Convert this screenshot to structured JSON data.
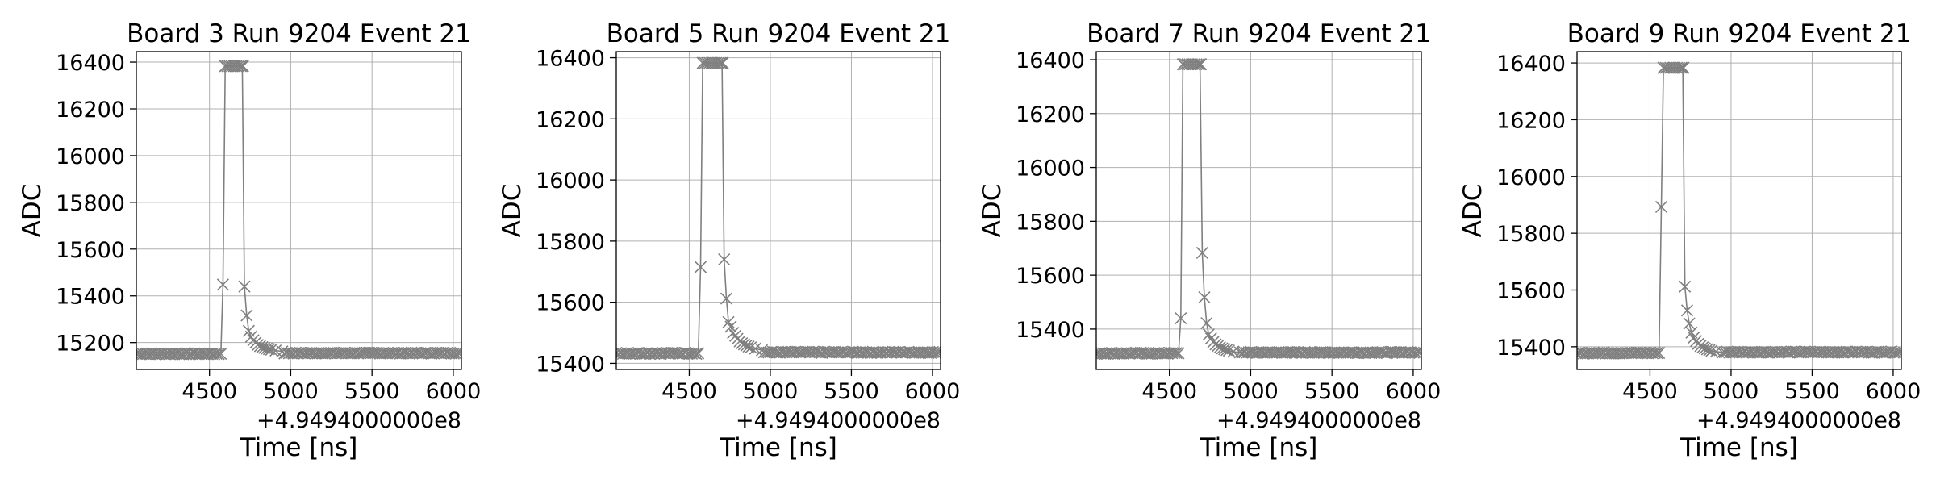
{
  "chart_data": [
    {
      "type": "scatter",
      "title": "Board 3 Run 9204 Event 21",
      "xlabel": "Time [ns]",
      "ylabel": "ADC",
      "x_offset_label": "+4.9494000000e8",
      "xlim": [
        4050,
        6050
      ],
      "ylim": [
        15085,
        16445
      ],
      "xticks": [
        4500,
        5000,
        5500,
        6000
      ],
      "xtick_labels": [
        "4500",
        "5000",
        "5500",
        "6000"
      ],
      "yticks": [
        15200,
        15400,
        15600,
        15800,
        16000,
        16200,
        16400
      ],
      "ytick_labels": [
        "15200",
        "15400",
        "15600",
        "15800",
        "16000",
        "16200",
        "16400"
      ],
      "grid": true,
      "color": "#808080",
      "marker": "x",
      "baseline": 15152,
      "saturation": 16383,
      "pulse_start": 4583,
      "pulse_end": 4715,
      "series": [
        {
          "x": [
            4570,
            4583,
            4597,
            4702,
            4715,
            4729,
            4742,
            4756,
            4770,
            4784,
            4797,
            4811,
            4825,
            4838,
            4852,
            4866,
            4880,
            4907,
            4948
          ],
          "y": [
            15152,
            15448,
            16383,
            16383,
            15440,
            15316,
            15250,
            15225,
            15210,
            15200,
            15190,
            15185,
            15180,
            15177,
            15174,
            15172,
            15170,
            15166,
            15162
          ]
        }
      ]
    },
    {
      "type": "scatter",
      "title": "Board 5 Run 9204 Event 21",
      "xlabel": "Time [ns]",
      "ylabel": "ADC",
      "x_offset_label": "+4.9494000000e8",
      "xlim": [
        4050,
        6050
      ],
      "ylim": [
        15380,
        16420
      ],
      "xticks": [
        4500,
        5000,
        5500,
        6000
      ],
      "xtick_labels": [
        "4500",
        "5000",
        "5500",
        "6000"
      ],
      "yticks": [
        15400,
        15600,
        15800,
        16000,
        16200,
        16400
      ],
      "ytick_labels": [
        "15400",
        "15600",
        "15800",
        "16000",
        "16200",
        "16400"
      ],
      "grid": true,
      "color": "#808080",
      "marker": "x",
      "baseline": 15433,
      "saturation": 16383,
      "pulse_start": 4570,
      "pulse_end": 4715,
      "series": [
        {
          "x": [
            4556,
            4570,
            4583,
            4702,
            4715,
            4729,
            4742,
            4756,
            4770,
            4784,
            4797,
            4811,
            4825,
            4838,
            4852,
            4866,
            4880,
            4907,
            4948
          ],
          "y": [
            15433,
            15715,
            16383,
            16383,
            15740,
            15612,
            15535,
            15520,
            15500,
            15490,
            15480,
            15472,
            15466,
            15462,
            15458,
            15455,
            15452,
            15448,
            15443
          ]
        }
      ]
    },
    {
      "type": "scatter",
      "title": "Board 7 Run 9204 Event 21",
      "xlabel": "Time [ns]",
      "ylabel": "ADC",
      "x_offset_label": "+4.9494000000e8",
      "xlim": [
        4050,
        6050
      ],
      "ylim": [
        15250,
        16430
      ],
      "xticks": [
        4500,
        5000,
        5500,
        6000
      ],
      "xtick_labels": [
        "4500",
        "5000",
        "5500",
        "6000"
      ],
      "yticks": [
        15400,
        15600,
        15800,
        16000,
        16200,
        16400
      ],
      "ytick_labels": [
        "15400",
        "15600",
        "15800",
        "16000",
        "16200",
        "16400"
      ],
      "grid": true,
      "color": "#808080",
      "marker": "x",
      "baseline": 15310,
      "saturation": 16383,
      "pulse_start": 4570,
      "pulse_end": 4702,
      "series": [
        {
          "x": [
            4556,
            4570,
            4583,
            4688,
            4702,
            4715,
            4729,
            4742,
            4756,
            4770,
            4784,
            4797,
            4811,
            4825,
            4838,
            4852,
            4866,
            4893,
            4934
          ],
          "y": [
            15310,
            15440,
            16383,
            16383,
            15683,
            15518,
            15422,
            15380,
            15365,
            15352,
            15343,
            15337,
            15332,
            15328,
            15325,
            15322,
            15320,
            15316,
            15313
          ]
        }
      ]
    },
    {
      "type": "scatter",
      "title": "Board 9 Run 9204 Event 21",
      "xlabel": "Time [ns]",
      "ylabel": "ADC",
      "x_offset_label": "+4.9494000000e8",
      "xlim": [
        4050,
        6050
      ],
      "ylim": [
        15320,
        16440
      ],
      "xticks": [
        4500,
        5000,
        5500,
        6000
      ],
      "xtick_labels": [
        "4500",
        "5000",
        "5500",
        "6000"
      ],
      "yticks": [
        15400,
        15600,
        15800,
        16000,
        16200,
        16400
      ],
      "ytick_labels": [
        "15400",
        "15600",
        "15800",
        "16000",
        "16200",
        "16400"
      ],
      "grid": true,
      "color": "#808080",
      "marker": "x",
      "baseline": 15378,
      "saturation": 16383,
      "pulse_start": 4570,
      "pulse_end": 4715,
      "series": [
        {
          "x": [
            4556,
            4570,
            4583,
            4702,
            4715,
            4729,
            4742,
            4756,
            4770,
            4784,
            4797,
            4811,
            4825,
            4838,
            4852,
            4866,
            4880,
            4907,
            4948
          ],
          "y": [
            15378,
            15893,
            16383,
            16383,
            15612,
            15528,
            15482,
            15450,
            15432,
            15420,
            15410,
            15403,
            15398,
            15394,
            15391,
            15388,
            15386,
            15383,
            15380
          ]
        }
      ]
    }
  ]
}
